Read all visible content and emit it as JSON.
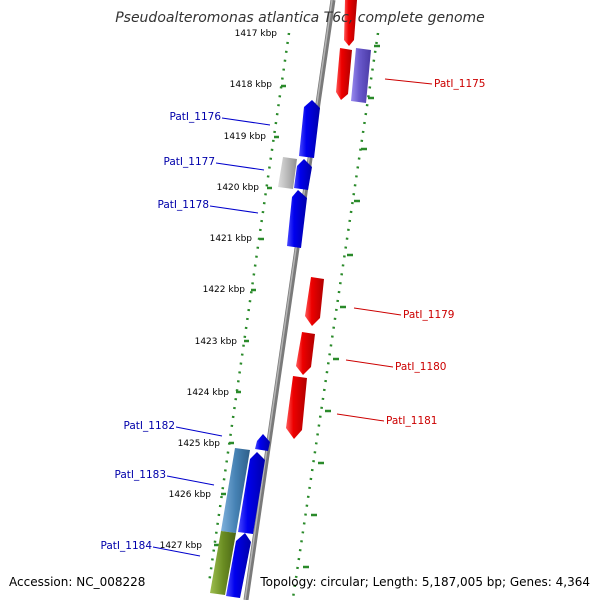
{
  "map": {
    "title": "Pseudoalteromonas atlantica T6c, complete genome",
    "ticks": [
      "1417 kbp",
      "1418 kbp",
      "1419 kbp",
      "1420 kbp",
      "1421 kbp",
      "1422 kbp",
      "1423 kbp",
      "1424 kbp",
      "1425 kbp",
      "1426 kbp",
      "1427 kbp"
    ],
    "genes": [
      {
        "label": "PatI_1175",
        "strand": "reverse",
        "color": "#cc0000"
      },
      {
        "label": "PatI_1176",
        "strand": "forward",
        "color": "#0000cc"
      },
      {
        "label": "PatI_1177",
        "strand": "forward",
        "color": "#0000cc"
      },
      {
        "label": "PatI_1178",
        "strand": "forward",
        "color": "#0000cc"
      },
      {
        "label": "PatI_1179",
        "strand": "reverse",
        "color": "#cc0000"
      },
      {
        "label": "PatI_1180",
        "strand": "reverse",
        "color": "#cc0000"
      },
      {
        "label": "PatI_1181",
        "strand": "reverse",
        "color": "#cc0000"
      },
      {
        "label": "PatI_1182",
        "strand": "forward",
        "color": "#0000cc"
      },
      {
        "label": "PatI_1183",
        "strand": "forward",
        "color": "#0000cc"
      },
      {
        "label": "PatI_1184",
        "strand": "forward",
        "color": "#0000cc"
      }
    ],
    "colors": {
      "forward": "#0000ee",
      "reverse": "#ee0000",
      "forward_label": "#0000aa",
      "reverse_label": "#cc0000",
      "backbone": "#808080",
      "dots": "#2a8a2a",
      "purple_feature": "#6a5acd",
      "grey_feature": "#b0b0b0",
      "steelblue_feature": "#4682b4",
      "olive_feature": "#6b8e23"
    }
  },
  "footer": {
    "accession": "Accession: NC_008228",
    "info": "Topology: circular; Length: 5,187,005 bp; Genes: 4,364"
  }
}
